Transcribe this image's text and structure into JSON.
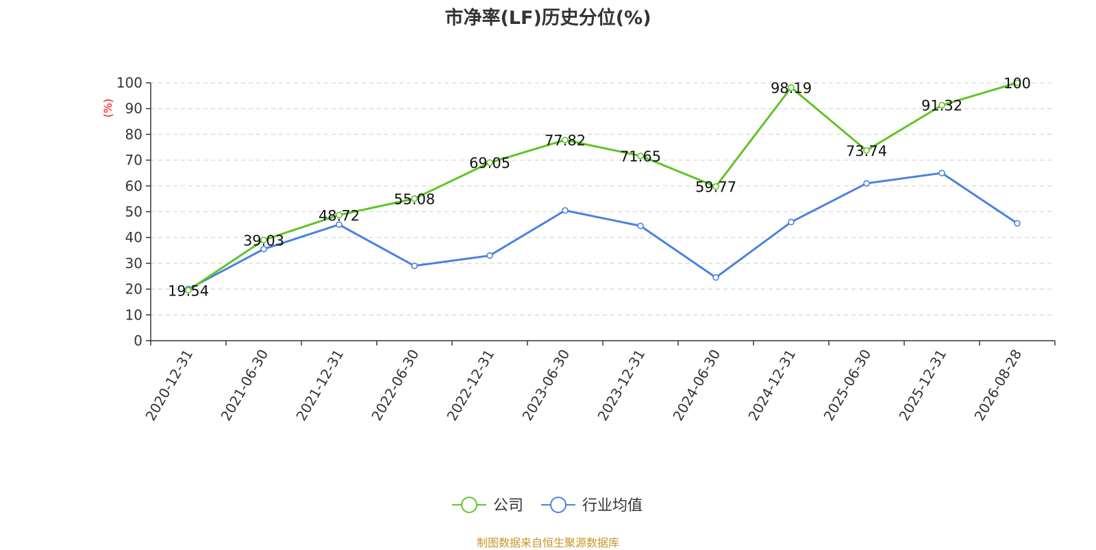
{
  "chart_data": {
    "type": "line",
    "title": "市净率(LF)历史分位(%)",
    "ylabel": "(%)",
    "xlabel": "",
    "ylim": [
      0,
      100
    ],
    "yticks": [
      0,
      10,
      20,
      30,
      40,
      50,
      60,
      70,
      80,
      90,
      100
    ],
    "grid": true,
    "legend_position": "bottom-center",
    "categories": [
      "2020-12-31",
      "2021-06-30",
      "2021-12-31",
      "2022-06-30",
      "2022-12-31",
      "2023-06-30",
      "2023-12-31",
      "2024-06-30",
      "2024-12-31",
      "2025-06-30",
      "2025-12-31",
      "2026-08-28"
    ],
    "series": [
      {
        "name": "公司",
        "color": "#5ec424",
        "values": [
          19.54,
          39.03,
          48.72,
          55.08,
          69.05,
          77.82,
          71.65,
          59.77,
          98.19,
          73.74,
          91.32,
          100
        ],
        "labels": [
          "19.54",
          "39.03",
          "48.72",
          "55.08",
          "69.05",
          "77.82",
          "71.65",
          "59.77",
          "98.19",
          "73.74",
          "91.32",
          "100"
        ]
      },
      {
        "name": "行业均值",
        "color": "#4a80e0",
        "values": [
          20,
          35.5,
          45,
          29,
          33,
          50.5,
          44.5,
          24.5,
          46,
          61,
          65,
          45.5
        ]
      }
    ],
    "source": "制图数据来自恒生聚源数据库"
  }
}
